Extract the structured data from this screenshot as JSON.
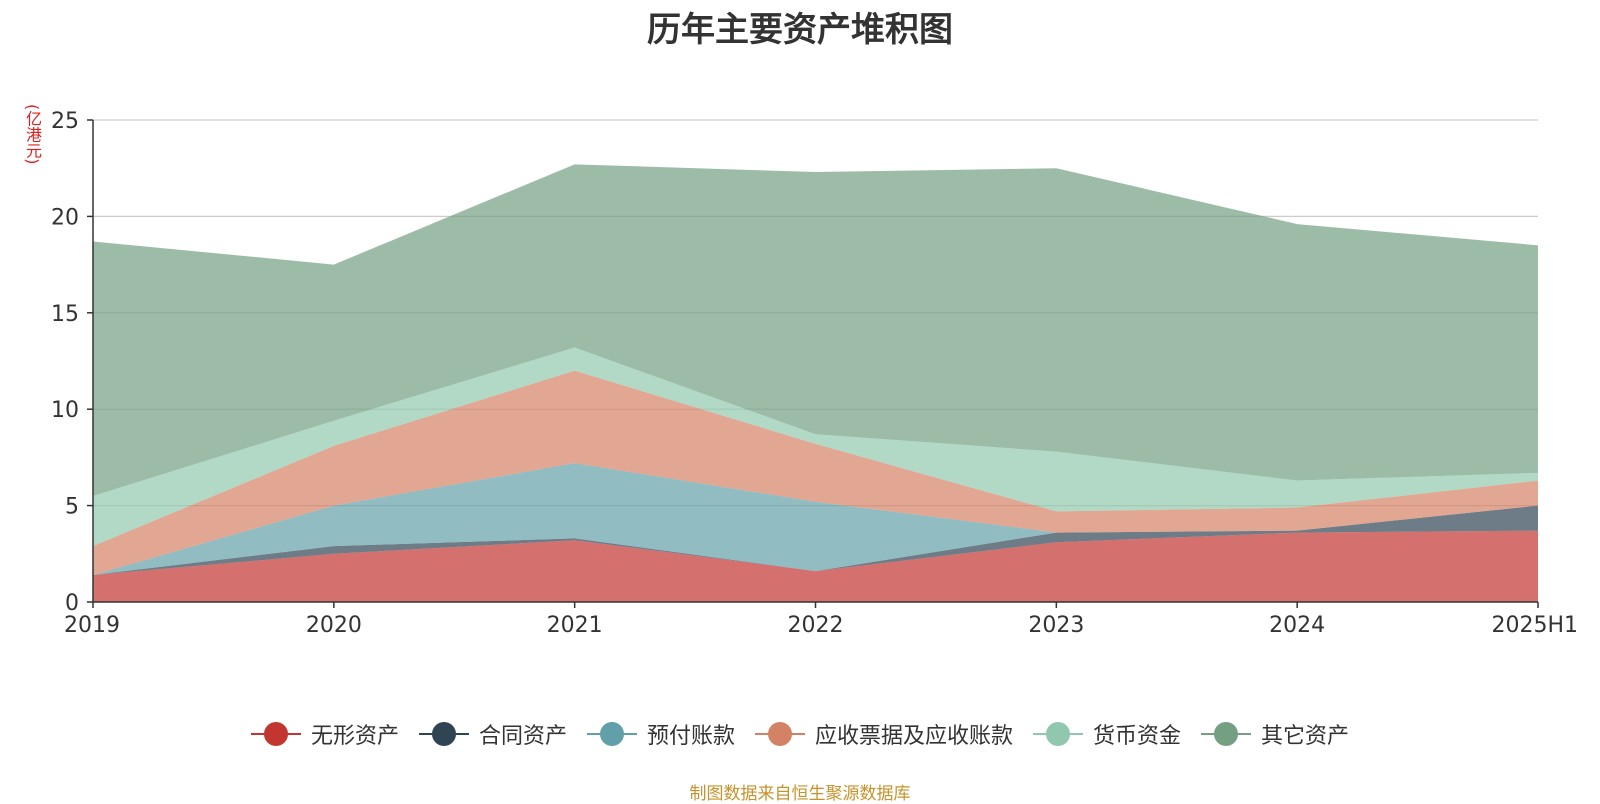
{
  "chart_data": {
    "type": "area",
    "stacked": true,
    "title": "历年主要资产堆积图",
    "ylabel": "(亿港元)",
    "xlabel": "",
    "categories": [
      "2019",
      "2020",
      "2021",
      "2022",
      "2023",
      "2024",
      "2025H1"
    ],
    "ylim": [
      0,
      25
    ],
    "yticks": [
      0,
      5,
      10,
      15,
      20,
      25
    ],
    "grid": true,
    "legend_position": "bottom",
    "series": [
      {
        "name": "无形资产",
        "color": "#c23531",
        "values": [
          1.4,
          2.5,
          3.2,
          1.6,
          3.1,
          3.6,
          3.7
        ]
      },
      {
        "name": "合同资产",
        "color": "#2f4554",
        "values": [
          0.0,
          0.4,
          0.1,
          0.0,
          0.5,
          0.1,
          1.3
        ]
      },
      {
        "name": "预付账款",
        "color": "#61a0a8",
        "values": [
          0.0,
          2.1,
          3.9,
          3.6,
          0.0,
          0.0,
          0.0
        ]
      },
      {
        "name": "应收票据及应收账款",
        "color": "#d48265",
        "values": [
          1.5,
          3.1,
          4.8,
          3.0,
          1.1,
          1.2,
          1.3
        ]
      },
      {
        "name": "货币资金",
        "color": "#91c7ae",
        "values": [
          2.6,
          1.3,
          1.2,
          0.5,
          3.1,
          1.4,
          0.4
        ]
      },
      {
        "name": "其它资产",
        "color": "#749f83",
        "values": [
          13.2,
          8.1,
          9.5,
          13.6,
          14.7,
          13.3,
          11.8
        ]
      }
    ]
  },
  "source_note": "制图数据来自恒生聚源数据库"
}
